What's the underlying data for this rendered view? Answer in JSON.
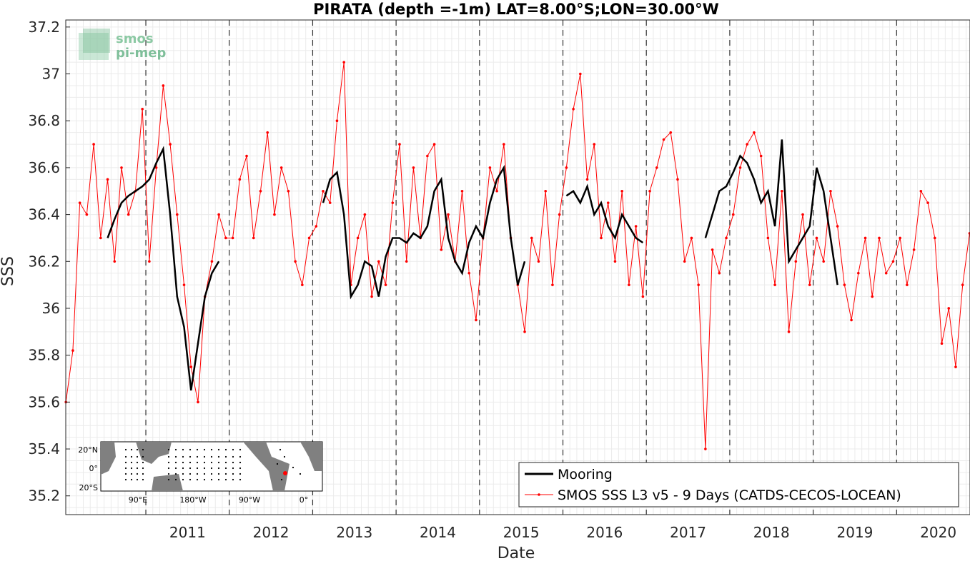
{
  "chart_data": {
    "type": "line",
    "title": "PIRATA (depth =-1m) LAT=8.00°S;LON=30.00°W",
    "xlabel": "Date",
    "ylabel": "SSS",
    "x_range": [
      "2010-01-15",
      "2020-11-15"
    ],
    "xlim_years": [
      2010.04,
      2020.88
    ],
    "ylim": [
      35.12,
      37.23
    ],
    "x_ticks": [
      "2011",
      "2012",
      "2013",
      "2014",
      "2015",
      "2016",
      "2017",
      "2018",
      "2019",
      "2020"
    ],
    "y_ticks": [
      "35.2",
      "35.4",
      "35.6",
      "35.8",
      "36",
      "36.2",
      "36.4",
      "36.6",
      "36.8",
      "37",
      "37.2"
    ],
    "grid": true,
    "year_boundaries_dashed": [
      "2011-01-01",
      "2012-01-01",
      "2013-01-01",
      "2014-01-01",
      "2015-01-01",
      "2016-01-01",
      "2017-01-01",
      "2018-01-01",
      "2019-01-01",
      "2020-01-01"
    ],
    "legend_position": "bottom-right",
    "series": [
      {
        "name": "Mooring",
        "color": "#000000",
        "x": [
          "2010-07",
          "2010-08",
          "2010-09",
          "2010-10",
          "2010-11",
          "2010-12",
          "2011-01",
          "2011-02",
          "2011-03",
          "2011-04",
          "2011-05",
          "2011-06",
          "2011-07",
          "2011-08",
          "2011-09",
          "2011-10",
          "2011-11",
          "2013-02",
          "2013-03",
          "2013-04",
          "2013-05",
          "2013-06",
          "2013-07",
          "2013-08",
          "2013-09",
          "2013-10",
          "2013-11",
          "2013-12",
          "2014-01",
          "2014-02",
          "2014-03",
          "2014-04",
          "2014-05",
          "2014-06",
          "2014-07",
          "2014-08",
          "2014-09",
          "2014-10",
          "2014-11",
          "2014-12",
          "2015-01",
          "2015-02",
          "2015-03",
          "2015-04",
          "2015-05",
          "2015-06",
          "2015-07",
          "2016-01",
          "2016-02",
          "2016-03",
          "2016-04",
          "2016-05",
          "2016-06",
          "2016-07",
          "2016-08",
          "2016-09",
          "2016-10",
          "2016-11",
          "2016-12",
          "2017-09",
          "2017-10",
          "2017-11",
          "2017-12",
          "2018-01",
          "2018-02",
          "2018-03",
          "2018-04",
          "2018-05",
          "2018-06",
          "2018-07",
          "2018-08",
          "2018-09",
          "2018-10",
          "2018-11",
          "2018-12",
          "2019-01",
          "2019-02",
          "2019-03",
          "2019-04"
        ],
        "values": [
          36.3,
          36.38,
          36.45,
          36.48,
          36.5,
          36.52,
          36.55,
          36.62,
          36.68,
          36.4,
          36.05,
          35.92,
          35.65,
          35.85,
          36.05,
          36.15,
          36.2,
          36.45,
          36.55,
          36.58,
          36.4,
          36.05,
          36.1,
          36.2,
          36.18,
          36.05,
          36.22,
          36.3,
          36.3,
          36.28,
          36.32,
          36.3,
          36.35,
          36.5,
          36.55,
          36.3,
          36.2,
          36.15,
          36.28,
          36.35,
          36.3,
          36.45,
          36.55,
          36.6,
          36.3,
          36.1,
          36.2,
          36.48,
          36.5,
          36.45,
          36.52,
          36.4,
          36.45,
          36.35,
          36.3,
          36.4,
          36.35,
          36.3,
          36.28,
          36.3,
          36.4,
          36.5,
          36.52,
          36.58,
          36.65,
          36.62,
          36.55,
          36.45,
          36.5,
          36.35,
          36.72,
          36.2,
          36.25,
          36.3,
          36.35,
          36.6,
          36.5,
          36.3,
          36.1
        ]
      },
      {
        "name": "SMOS SSS L3 v5 - 9 Days (CATDS-CECOS-LOCEAN)",
        "color": "#ff0000",
        "x": [
          "2010-01",
          "2010-02",
          "2010-03",
          "2010-04",
          "2010-05",
          "2010-06",
          "2010-07",
          "2010-08",
          "2010-09",
          "2010-10",
          "2010-11",
          "2010-12",
          "2011-01",
          "2011-02",
          "2011-03",
          "2011-04",
          "2011-05",
          "2011-06",
          "2011-07",
          "2011-08",
          "2011-09",
          "2011-10",
          "2011-11",
          "2011-12",
          "2012-01",
          "2012-02",
          "2012-03",
          "2012-04",
          "2012-05",
          "2012-06",
          "2012-07",
          "2012-08",
          "2012-09",
          "2012-10",
          "2012-11",
          "2012-12",
          "2013-01",
          "2013-02",
          "2013-03",
          "2013-04",
          "2013-05",
          "2013-06",
          "2013-07",
          "2013-08",
          "2013-09",
          "2013-10",
          "2013-11",
          "2013-12",
          "2014-01",
          "2014-02",
          "2014-03",
          "2014-04",
          "2014-05",
          "2014-06",
          "2014-07",
          "2014-08",
          "2014-09",
          "2014-10",
          "2014-11",
          "2014-12",
          "2015-01",
          "2015-02",
          "2015-03",
          "2015-04",
          "2015-05",
          "2015-06",
          "2015-07",
          "2015-08",
          "2015-09",
          "2015-10",
          "2015-11",
          "2015-12",
          "2016-01",
          "2016-02",
          "2016-03",
          "2016-04",
          "2016-05",
          "2016-06",
          "2016-07",
          "2016-08",
          "2016-09",
          "2016-10",
          "2016-11",
          "2016-12",
          "2017-01",
          "2017-02",
          "2017-03",
          "2017-04",
          "2017-05",
          "2017-06",
          "2017-07",
          "2017-08",
          "2017-09",
          "2017-10",
          "2017-11",
          "2017-12",
          "2018-01",
          "2018-02",
          "2018-03",
          "2018-04",
          "2018-05",
          "2018-06",
          "2018-07",
          "2018-08",
          "2018-09",
          "2018-10",
          "2018-11",
          "2018-12",
          "2019-01",
          "2019-02",
          "2019-03",
          "2019-04",
          "2019-05",
          "2019-06",
          "2019-07",
          "2019-08",
          "2019-09",
          "2019-10",
          "2019-11",
          "2019-12",
          "2020-01",
          "2020-02",
          "2020-03",
          "2020-04",
          "2020-05",
          "2020-06",
          "2020-07",
          "2020-08",
          "2020-09",
          "2020-10",
          "2020-11"
        ],
        "values": [
          35.6,
          35.82,
          36.45,
          36.4,
          36.7,
          36.3,
          36.55,
          36.2,
          36.6,
          36.4,
          36.5,
          36.85,
          36.2,
          36.6,
          36.95,
          36.7,
          36.4,
          36.1,
          35.75,
          35.6,
          36.05,
          36.2,
          36.4,
          36.3,
          36.3,
          36.55,
          36.65,
          36.3,
          36.5,
          36.75,
          36.4,
          36.6,
          36.5,
          36.2,
          36.1,
          36.3,
          36.35,
          36.5,
          36.45,
          36.8,
          37.05,
          36.1,
          36.3,
          36.4,
          36.05,
          36.2,
          36.1,
          36.45,
          36.7,
          36.2,
          36.6,
          36.3,
          36.65,
          36.7,
          36.25,
          36.4,
          36.2,
          36.5,
          36.15,
          35.95,
          36.3,
          36.6,
          36.5,
          36.7,
          36.3,
          36.1,
          35.9,
          36.3,
          36.2,
          36.5,
          36.1,
          36.4,
          36.6,
          36.85,
          37.0,
          36.55,
          36.7,
          36.3,
          36.45,
          36.2,
          36.5,
          36.1,
          36.35,
          36.05,
          36.5,
          36.6,
          36.72,
          36.75,
          36.55,
          36.2,
          36.3,
          36.1,
          35.4,
          36.25,
          36.15,
          36.3,
          36.4,
          36.6,
          36.7,
          36.75,
          36.65,
          36.3,
          36.1,
          36.5,
          35.9,
          36.2,
          36.4,
          36.1,
          36.3,
          36.2,
          36.5,
          36.35,
          36.1,
          35.95,
          36.15,
          36.3,
          36.05,
          36.3,
          36.15,
          36.2,
          36.3,
          36.1,
          36.25,
          36.5,
          36.45,
          36.3,
          35.85,
          36.0,
          35.75,
          36.1,
          36.32
        ]
      }
    ]
  },
  "logo": {
    "line1": "smos",
    "line2": "pi-mep"
  },
  "inset_map": {
    "x_tick_labels": [
      "90°E",
      "180°W",
      "90°W",
      "0°"
    ],
    "y_tick_labels": [
      "20°N",
      "0°",
      "20°S"
    ]
  },
  "colors": {
    "mooring": "#000000",
    "smos": "#ff0000",
    "grid": "#e6e6e6",
    "dashed": "#333333",
    "logo": "#7fbf9a",
    "land": "#808080"
  }
}
